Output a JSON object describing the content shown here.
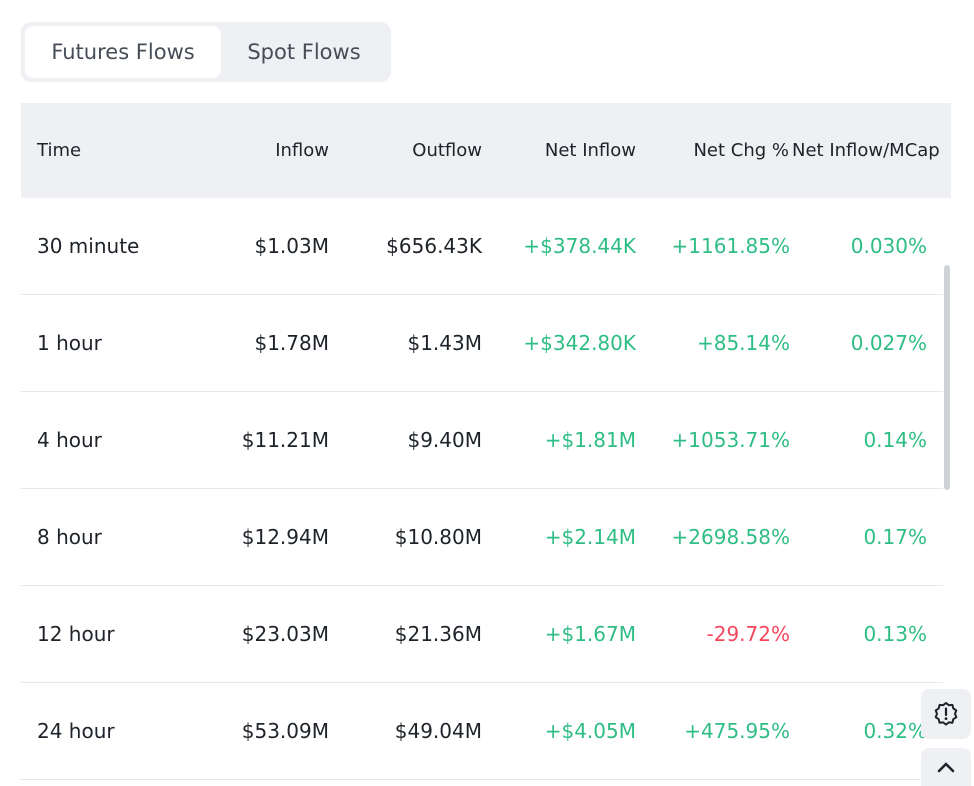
{
  "tabs": [
    {
      "label": "Futures Flows",
      "active": true
    },
    {
      "label": "Spot Flows",
      "active": false
    }
  ],
  "table": {
    "headers": {
      "time": "Time",
      "inflow": "Inflow",
      "outflow": "Outflow",
      "net_inflow": "Net Inflow",
      "net_chg": "Net Chg %",
      "net_inflow_mcap": "Net Inflow/MCap"
    },
    "rows": [
      {
        "time": "30 minute",
        "inflow": "$1.03M",
        "outflow": "$656.43K",
        "net_inflow": "+$378.44K",
        "net_chg": "+1161.85%",
        "mcap": "0.030%"
      },
      {
        "time": "1 hour",
        "inflow": "$1.78M",
        "outflow": "$1.43M",
        "net_inflow": "+$342.80K",
        "net_chg": "+85.14%",
        "mcap": "0.027%"
      },
      {
        "time": "4 hour",
        "inflow": "$11.21M",
        "outflow": "$9.40M",
        "net_inflow": "+$1.81M",
        "net_chg": "+1053.71%",
        "mcap": "0.14%"
      },
      {
        "time": "8 hour",
        "inflow": "$12.94M",
        "outflow": "$10.80M",
        "net_inflow": "+$2.14M",
        "net_chg": "+2698.58%",
        "mcap": "0.17%"
      },
      {
        "time": "12 hour",
        "inflow": "$23.03M",
        "outflow": "$21.36M",
        "net_inflow": "+$1.67M",
        "net_chg": "-29.72%",
        "mcap": "0.13%"
      },
      {
        "time": "24 hour",
        "inflow": "$53.09M",
        "outflow": "$49.04M",
        "net_inflow": "+$4.05M",
        "net_chg": "+475.95%",
        "mcap": "0.32%"
      }
    ]
  },
  "colors": {
    "positive": "#2ebd85",
    "negative": "#f6465d",
    "header_bg": "#eef0f3",
    "text": "#1e2329"
  },
  "icons": {
    "feedback": "alert-badge-icon",
    "back_to_top": "chevron-up-icon"
  }
}
